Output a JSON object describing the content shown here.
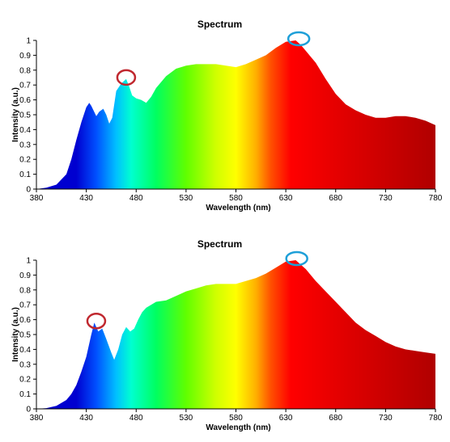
{
  "colors": {
    "spectrum_stops": [
      "#0000d0",
      "#0050ff",
      "#00c0ff",
      "#00ffd0",
      "#00ff60",
      "#60ff00",
      "#d0ff00",
      "#ffff00",
      "#ffb000",
      "#ff5000",
      "#ff0000",
      "#e00000",
      "#b00000"
    ],
    "marker_red": "#c0282f",
    "marker_blue": "#1e9fd8",
    "axis": "#000000"
  },
  "chart_data": [
    {
      "type": "area",
      "title": "Spectrum",
      "xlabel": "Wavelength (nm)",
      "ylabel": "Intensity (a.u.)",
      "xlim": [
        380,
        780
      ],
      "ylim": [
        0,
        1
      ],
      "grid": false,
      "x_ticks": [
        "380",
        "430",
        "480",
        "530",
        "580",
        "630",
        "680",
        "730",
        "780"
      ],
      "y_ticks": [
        "0",
        "0.1",
        "0.2",
        "0.3",
        "0.4",
        "0.5",
        "0.6",
        "0.7",
        "0.8",
        "0.9",
        "1"
      ],
      "x": [
        380,
        390,
        400,
        410,
        415,
        420,
        425,
        430,
        433,
        435,
        440,
        443,
        447,
        450,
        453,
        456,
        460,
        465,
        470,
        473,
        476,
        480,
        485,
        490,
        495,
        500,
        510,
        520,
        530,
        540,
        550,
        560,
        570,
        580,
        590,
        600,
        610,
        620,
        630,
        640,
        645,
        650,
        660,
        670,
        680,
        690,
        700,
        710,
        720,
        730,
        740,
        750,
        760,
        770,
        780
      ],
      "y": [
        0,
        0.01,
        0.03,
        0.1,
        0.2,
        0.33,
        0.45,
        0.55,
        0.58,
        0.56,
        0.49,
        0.52,
        0.54,
        0.5,
        0.44,
        0.48,
        0.66,
        0.71,
        0.74,
        0.69,
        0.63,
        0.61,
        0.6,
        0.58,
        0.62,
        0.68,
        0.76,
        0.81,
        0.83,
        0.84,
        0.84,
        0.84,
        0.83,
        0.82,
        0.84,
        0.87,
        0.9,
        0.95,
        0.99,
        1.0,
        0.97,
        0.93,
        0.85,
        0.74,
        0.64,
        0.57,
        0.53,
        0.5,
        0.48,
        0.48,
        0.49,
        0.49,
        0.48,
        0.46,
        0.43
      ],
      "markers": [
        {
          "x": 470,
          "y": 0.74,
          "color": "red"
        },
        {
          "x": 643,
          "y": 1.0,
          "color": "blue"
        }
      ]
    },
    {
      "type": "area",
      "title": "Spectrum",
      "xlabel": "Wavelength (nm)",
      "ylabel": "Intensity (a.u.)",
      "xlim": [
        380,
        780
      ],
      "ylim": [
        0,
        1
      ],
      "grid": false,
      "x_ticks": [
        "380",
        "430",
        "480",
        "530",
        "580",
        "630",
        "680",
        "730",
        "780"
      ],
      "y_ticks": [
        "0",
        "0.1",
        "0.2",
        "0.3",
        "0.4",
        "0.5",
        "0.6",
        "0.7",
        "0.8",
        "0.9",
        "1"
      ],
      "x": [
        380,
        390,
        400,
        410,
        415,
        420,
        425,
        430,
        435,
        438,
        442,
        446,
        450,
        455,
        458,
        462,
        466,
        470,
        474,
        478,
        482,
        486,
        490,
        500,
        510,
        520,
        530,
        540,
        550,
        560,
        570,
        580,
        590,
        600,
        610,
        620,
        630,
        640,
        650,
        660,
        670,
        680,
        690,
        700,
        710,
        720,
        730,
        740,
        750,
        760,
        770,
        780
      ],
      "y": [
        0,
        0.005,
        0.02,
        0.06,
        0.1,
        0.16,
        0.25,
        0.35,
        0.5,
        0.58,
        0.52,
        0.54,
        0.47,
        0.38,
        0.33,
        0.4,
        0.5,
        0.55,
        0.52,
        0.54,
        0.6,
        0.65,
        0.68,
        0.72,
        0.73,
        0.76,
        0.79,
        0.81,
        0.83,
        0.84,
        0.84,
        0.84,
        0.86,
        0.88,
        0.91,
        0.95,
        0.99,
        1.0,
        0.94,
        0.86,
        0.79,
        0.72,
        0.65,
        0.58,
        0.53,
        0.49,
        0.45,
        0.42,
        0.4,
        0.39,
        0.38,
        0.37
      ],
      "markers": [
        {
          "x": 440,
          "y": 0.58,
          "color": "red"
        },
        {
          "x": 641,
          "y": 1.0,
          "color": "blue"
        }
      ]
    }
  ]
}
